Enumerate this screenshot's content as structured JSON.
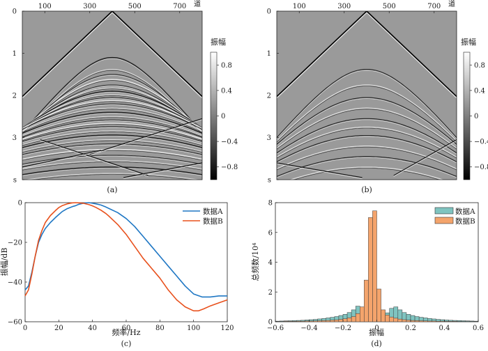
{
  "colors": {
    "line_a": "#1f77c4",
    "line_b": "#e8501c",
    "hist_a": "#7fc4c0",
    "hist_b": "#f4a46c",
    "seismic_bg": "#9a9a9a"
  },
  "chart_data": [
    {
      "id": "a",
      "type": "heatmap",
      "caption": "(a)",
      "x_tick_labels": [
        "100",
        "300",
        "500",
        "700"
      ],
      "x_ticks": [
        100,
        300,
        500,
        700
      ],
      "x_unit_label": "道",
      "xlim": [
        0,
        800
      ],
      "y_tick_labels": [
        "0",
        "1",
        "2",
        "3",
        "s"
      ],
      "y_ticks": [
        0,
        1,
        2,
        3,
        4
      ],
      "ylim": [
        0,
        4
      ],
      "apex_trace": 400,
      "colorbar": {
        "title": "振幅",
        "tick_labels": [
          "0.8",
          "0.4",
          "0",
          "−0.4",
          "−0.8"
        ],
        "ticks": [
          0.8,
          0.4,
          0,
          -0.4,
          -0.8
        ],
        "range": [
          -1,
          1
        ]
      }
    },
    {
      "id": "b",
      "type": "heatmap",
      "caption": "(b)",
      "x_tick_labels": [
        "100",
        "300",
        "500",
        "700"
      ],
      "x_ticks": [
        100,
        300,
        500,
        700
      ],
      "x_unit_label": "道",
      "xlim": [
        0,
        800
      ],
      "y_tick_labels": [
        "0",
        "1",
        "2",
        "3",
        "s"
      ],
      "y_ticks": [
        0,
        1,
        2,
        3,
        4
      ],
      "ylim": [
        0,
        4
      ],
      "apex_trace": 400,
      "colorbar": {
        "title": "振幅",
        "tick_labels": [
          "0.8",
          "0.4",
          "0",
          "−0.4",
          "−0.8"
        ],
        "ticks": [
          0.8,
          0.4,
          0,
          -0.4,
          -0.8
        ],
        "range": [
          -1,
          1
        ]
      }
    },
    {
      "id": "c",
      "type": "line",
      "caption": "(c)",
      "xlabel": "频率/Hz",
      "ylabel": "振幅/dB",
      "xlim": [
        0,
        120
      ],
      "ylim": [
        -60,
        0
      ],
      "x_ticks": [
        0,
        20,
        40,
        60,
        80,
        100,
        120
      ],
      "x_tick_labels": [
        "0",
        "20",
        "40",
        "60",
        "80",
        "100",
        "120"
      ],
      "y_ticks": [
        0,
        -20,
        -40,
        -60
      ],
      "y_tick_labels": [
        "0",
        "−20",
        "−40",
        "−60"
      ],
      "legend_position": "top-right",
      "series": [
        {
          "name": "数据A",
          "x": [
            0,
            2,
            4,
            6,
            8,
            10,
            12,
            15,
            18,
            20,
            22,
            25,
            28,
            30,
            32,
            35,
            38,
            40,
            42,
            45,
            48,
            50,
            55,
            60,
            65,
            70,
            75,
            80,
            85,
            90,
            95,
            100,
            105,
            110,
            115,
            120
          ],
          "y": [
            -44,
            -42,
            -35,
            -27,
            -20,
            -16,
            -13,
            -10,
            -7.5,
            -6,
            -4.5,
            -3,
            -2,
            -1.5,
            -0.8,
            -0.2,
            0,
            -0.3,
            -0.6,
            -1.2,
            -2.2,
            -3,
            -5,
            -8,
            -12,
            -17,
            -22,
            -27,
            -32,
            -37,
            -42,
            -46,
            -47.5,
            -47.5,
            -47,
            -47
          ]
        },
        {
          "name": "数据B",
          "x": [
            0,
            2,
            4,
            6,
            8,
            10,
            12,
            15,
            18,
            20,
            22,
            25,
            28,
            30,
            32,
            35,
            38,
            40,
            42,
            45,
            48,
            50,
            55,
            60,
            65,
            70,
            75,
            80,
            85,
            90,
            95,
            100,
            103,
            106,
            110,
            115,
            120
          ],
          "y": [
            -47,
            -44,
            -36,
            -27,
            -19,
            -14,
            -10,
            -6.5,
            -4,
            -2.5,
            -1.5,
            -0.6,
            -0.1,
            0,
            -0.1,
            -0.4,
            -1,
            -1.6,
            -2.4,
            -3.8,
            -5.5,
            -7,
            -11,
            -16,
            -22,
            -28,
            -33,
            -38,
            -44,
            -49,
            -52.5,
            -54.5,
            -54.5,
            -53.5,
            -52,
            -50.5,
            -49
          ]
        }
      ]
    },
    {
      "id": "d",
      "type": "bar",
      "caption": "(d)",
      "xlabel": "振幅",
      "ylabel": "总频数/10⁴",
      "xlim": [
        -0.6,
        0.6
      ],
      "ylim": [
        0,
        8
      ],
      "x_ticks": [
        -0.6,
        -0.4,
        -0.2,
        0,
        0.2,
        0.4,
        0.6
      ],
      "x_tick_labels": [
        "−0.6",
        "−0.4",
        "−0.2",
        "0",
        "0.2",
        "0.4",
        "0.6"
      ],
      "y_ticks": [
        0,
        2,
        4,
        6,
        8
      ],
      "y_tick_labels": [
        "0",
        "2",
        "4",
        "6",
        "8"
      ],
      "legend_position": "top-right",
      "bin_width": 0.025,
      "bin_centers": [
        -0.5875,
        -0.5625,
        -0.5375,
        -0.5125,
        -0.4875,
        -0.4625,
        -0.4375,
        -0.4125,
        -0.3875,
        -0.3625,
        -0.3375,
        -0.3125,
        -0.2875,
        -0.2625,
        -0.2375,
        -0.2125,
        -0.1875,
        -0.1625,
        -0.1375,
        -0.1125,
        -0.0875,
        -0.0625,
        -0.0375,
        -0.0125,
        0.0125,
        0.0375,
        0.0625,
        0.0875,
        0.1125,
        0.1375,
        0.1625,
        0.1875,
        0.2125,
        0.2375,
        0.2625,
        0.2875,
        0.3125,
        0.3375,
        0.3625,
        0.3875,
        0.4125,
        0.4375,
        0.4625,
        0.4875,
        0.5125,
        0.5375,
        0.5625,
        0.5875
      ],
      "series": [
        {
          "name": "数据A",
          "values": [
            0.04,
            0.05,
            0.06,
            0.07,
            0.08,
            0.09,
            0.1,
            0.12,
            0.14,
            0.16,
            0.19,
            0.22,
            0.26,
            0.3,
            0.35,
            0.42,
            0.5,
            0.62,
            0.8,
            1.05,
            0.85,
            0.6,
            0.4,
            0.3,
            0.3,
            0.4,
            0.6,
            0.9,
            1.0,
            0.8,
            0.62,
            0.5,
            0.42,
            0.35,
            0.3,
            0.26,
            0.22,
            0.19,
            0.16,
            0.14,
            0.12,
            0.1,
            0.09,
            0.08,
            0.07,
            0.06,
            0.05,
            0.04
          ]
        },
        {
          "name": "数据B",
          "values": [
            0.02,
            0.02,
            0.03,
            0.03,
            0.03,
            0.04,
            0.04,
            0.05,
            0.05,
            0.06,
            0.07,
            0.08,
            0.09,
            0.11,
            0.13,
            0.16,
            0.2,
            0.26,
            0.35,
            0.55,
            1.0,
            2.8,
            7.0,
            7.45,
            2.2,
            0.8,
            0.45,
            0.32,
            0.24,
            0.18,
            0.14,
            0.11,
            0.09,
            0.08,
            0.07,
            0.06,
            0.05,
            0.05,
            0.04,
            0.04,
            0.03,
            0.03,
            0.03,
            0.02,
            0.02,
            0.02,
            0.02,
            0.02
          ]
        }
      ]
    }
  ]
}
